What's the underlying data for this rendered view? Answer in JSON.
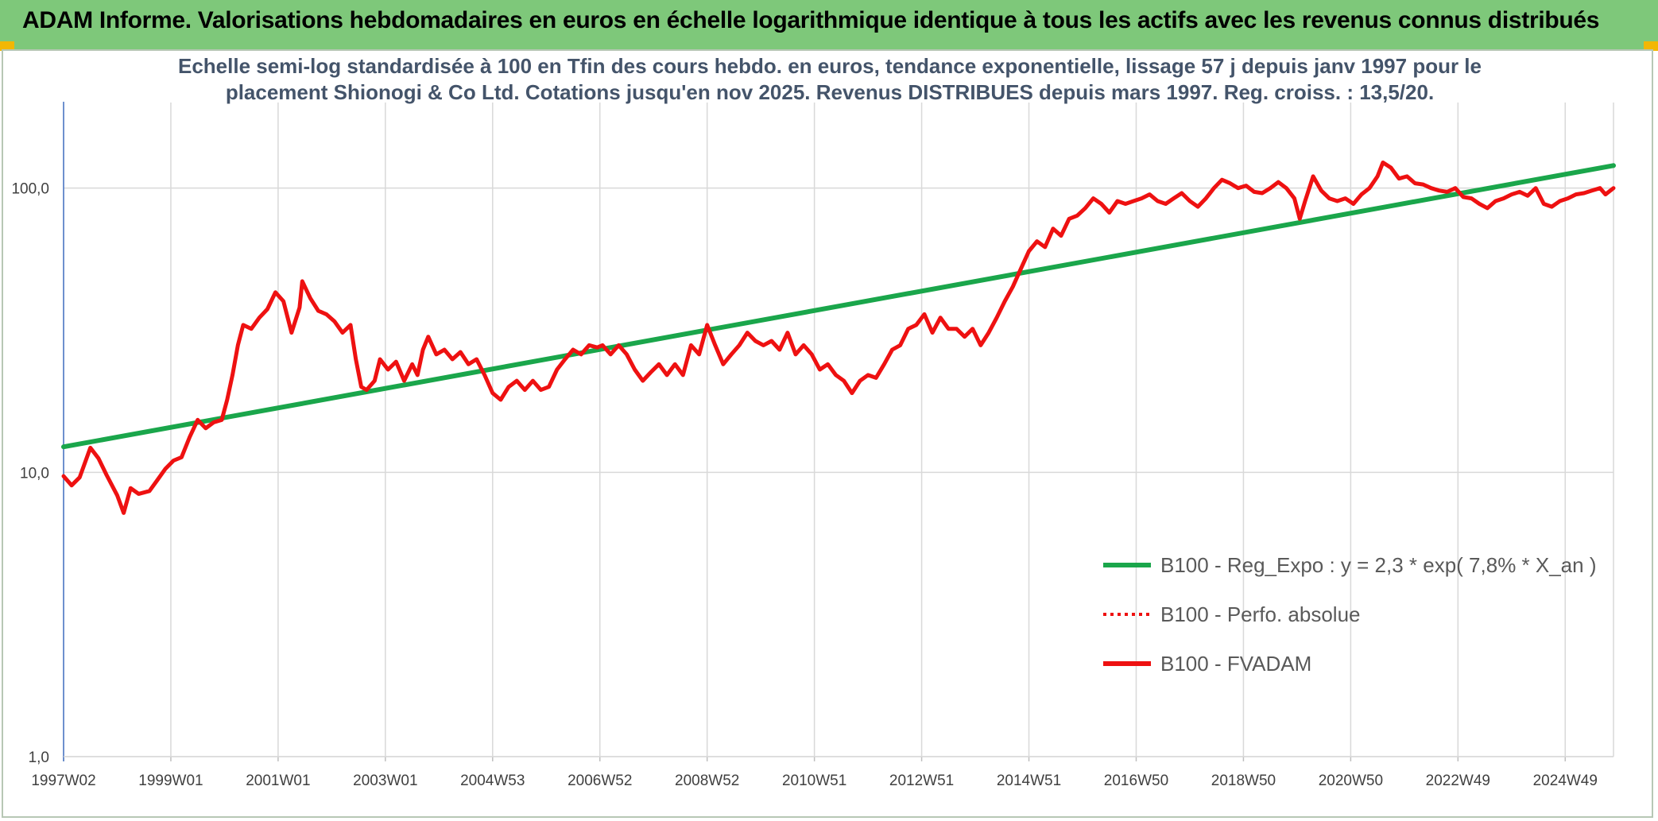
{
  "header": {
    "title": "ADAM Informe. Valorisations hebdomadaires en euros en échelle logarithmique identique à tous les actifs avec les revenus connus distribués"
  },
  "colors": {
    "banner": "#7ec87a",
    "regression": "#1aa64b",
    "fvadam": "#ee1111",
    "grid": "#d9d9d9"
  },
  "chart_data": {
    "type": "line",
    "title": "",
    "subtitle_lines": [
      "Echelle semi-log standardisée à 100 en Tfin des cours hebdo. en euros, tendance exponentielle, lissage 57 j depuis janv 1997 pour le",
      "placement Shionogi & Co Ltd. Cotations jusqu'en nov 2025. Revenus DISTRIBUES depuis mars 1997. Reg. croiss. : 13,5/20."
    ],
    "y_scale": "log",
    "ylim": [
      1,
      200
    ],
    "xlim": [
      1997.0,
      2025.9
    ],
    "grid": true,
    "y_ticks": [
      {
        "value": 1,
        "label": "1,0"
      },
      {
        "value": 10,
        "label": "10,0"
      },
      {
        "value": 100,
        "label": "100,0"
      }
    ],
    "x_ticks": [
      {
        "value": 1997.0,
        "label": "1997W02"
      },
      {
        "value": 1999.0,
        "label": "1999W01"
      },
      {
        "value": 2001.0,
        "label": "2001W01"
      },
      {
        "value": 2003.0,
        "label": "2003W01"
      },
      {
        "value": 2005.0,
        "label": "2004W53"
      },
      {
        "value": 2007.0,
        "label": "2006W52"
      },
      {
        "value": 2009.0,
        "label": "2008W52"
      },
      {
        "value": 2011.0,
        "label": "2010W51"
      },
      {
        "value": 2013.0,
        "label": "2012W51"
      },
      {
        "value": 2015.0,
        "label": "2014W51"
      },
      {
        "value": 2017.0,
        "label": "2016W50"
      },
      {
        "value": 2019.0,
        "label": "2018W50"
      },
      {
        "value": 2021.0,
        "label": "2020W50"
      },
      {
        "value": 2023.0,
        "label": "2022W49"
      },
      {
        "value": 2025.0,
        "label": "2024W49"
      }
    ],
    "legend_position": "lower-right",
    "series": [
      {
        "name": "B100 - Reg_Expo : y = 2,3 * exp( 7,8% *  X_an )",
        "color": "#1aa64b",
        "style": "solid",
        "points": [
          [
            1997.0,
            12.3
          ],
          [
            2025.9,
            120.0
          ]
        ]
      },
      {
        "name": "B100 - Perfo. absolue",
        "color": "#ee1111",
        "style": "dotted",
        "points": []
      },
      {
        "name": "B100 - FVADAM",
        "color": "#ee1111",
        "style": "solid",
        "points": [
          [
            1997.0,
            9.7
          ],
          [
            1997.15,
            9.0
          ],
          [
            1997.3,
            9.6
          ],
          [
            1997.5,
            12.2
          ],
          [
            1997.65,
            11.2
          ],
          [
            1997.8,
            9.8
          ],
          [
            1998.0,
            8.3
          ],
          [
            1998.12,
            7.2
          ],
          [
            1998.25,
            8.8
          ],
          [
            1998.4,
            8.4
          ],
          [
            1998.6,
            8.6
          ],
          [
            1998.75,
            9.4
          ],
          [
            1998.9,
            10.3
          ],
          [
            1999.05,
            11.0
          ],
          [
            1999.2,
            11.3
          ],
          [
            1999.35,
            13.3
          ],
          [
            1999.5,
            15.3
          ],
          [
            1999.65,
            14.3
          ],
          [
            1999.8,
            15.0
          ],
          [
            1999.95,
            15.3
          ],
          [
            2000.05,
            18.0
          ],
          [
            2000.15,
            22.0
          ],
          [
            2000.25,
            28.0
          ],
          [
            2000.35,
            33.0
          ],
          [
            2000.5,
            32.0
          ],
          [
            2000.65,
            35.0
          ],
          [
            2000.8,
            37.5
          ],
          [
            2000.95,
            43.0
          ],
          [
            2001.1,
            40.0
          ],
          [
            2001.25,
            31.0
          ],
          [
            2001.4,
            38.0
          ],
          [
            2001.45,
            47.0
          ],
          [
            2001.6,
            41.0
          ],
          [
            2001.75,
            37.0
          ],
          [
            2001.9,
            36.0
          ],
          [
            2002.05,
            34.0
          ],
          [
            2002.2,
            31.0
          ],
          [
            2002.35,
            33.0
          ],
          [
            2002.45,
            25.0
          ],
          [
            2002.55,
            20.0
          ],
          [
            2002.65,
            19.5
          ],
          [
            2002.8,
            21.0
          ],
          [
            2002.9,
            25.0
          ],
          [
            2003.05,
            23.0
          ],
          [
            2003.2,
            24.5
          ],
          [
            2003.35,
            21.0
          ],
          [
            2003.5,
            24.0
          ],
          [
            2003.6,
            22.0
          ],
          [
            2003.7,
            27.0
          ],
          [
            2003.8,
            30.0
          ],
          [
            2003.95,
            26.0
          ],
          [
            2004.1,
            27.0
          ],
          [
            2004.25,
            25.0
          ],
          [
            2004.4,
            26.5
          ],
          [
            2004.55,
            24.0
          ],
          [
            2004.7,
            25.0
          ],
          [
            2004.85,
            22.0
          ],
          [
            2005.0,
            19.0
          ],
          [
            2005.15,
            18.0
          ],
          [
            2005.3,
            20.0
          ],
          [
            2005.45,
            21.0
          ],
          [
            2005.6,
            19.5
          ],
          [
            2005.75,
            21.0
          ],
          [
            2005.9,
            19.5
          ],
          [
            2006.05,
            20.0
          ],
          [
            2006.2,
            23.0
          ],
          [
            2006.35,
            25.0
          ],
          [
            2006.5,
            27.0
          ],
          [
            2006.65,
            26.0
          ],
          [
            2006.8,
            28.0
          ],
          [
            2006.95,
            27.5
          ],
          [
            2007.05,
            28.0
          ],
          [
            2007.2,
            26.0
          ],
          [
            2007.35,
            28.0
          ],
          [
            2007.5,
            26.0
          ],
          [
            2007.65,
            23.0
          ],
          [
            2007.8,
            21.0
          ],
          [
            2007.95,
            22.5
          ],
          [
            2008.1,
            24.0
          ],
          [
            2008.25,
            22.0
          ],
          [
            2008.4,
            24.0
          ],
          [
            2008.55,
            22.0
          ],
          [
            2008.7,
            28.0
          ],
          [
            2008.85,
            26.0
          ],
          [
            2009.0,
            33.0
          ],
          [
            2009.15,
            28.0
          ],
          [
            2009.3,
            24.0
          ],
          [
            2009.45,
            26.0
          ],
          [
            2009.6,
            28.0
          ],
          [
            2009.75,
            31.0
          ],
          [
            2009.9,
            29.0
          ],
          [
            2010.05,
            28.0
          ],
          [
            2010.2,
            29.0
          ],
          [
            2010.35,
            27.0
          ],
          [
            2010.5,
            31.0
          ],
          [
            2010.65,
            26.0
          ],
          [
            2010.8,
            28.0
          ],
          [
            2010.95,
            26.0
          ],
          [
            2011.1,
            23.0
          ],
          [
            2011.25,
            24.0
          ],
          [
            2011.4,
            22.0
          ],
          [
            2011.55,
            21.0
          ],
          [
            2011.7,
            19.0
          ],
          [
            2011.85,
            21.0
          ],
          [
            2012.0,
            22.0
          ],
          [
            2012.15,
            21.5
          ],
          [
            2012.3,
            24.0
          ],
          [
            2012.45,
            27.0
          ],
          [
            2012.6,
            28.0
          ],
          [
            2012.75,
            32.0
          ],
          [
            2012.9,
            33.0
          ],
          [
            2013.05,
            36.0
          ],
          [
            2013.2,
            31.0
          ],
          [
            2013.35,
            35.0
          ],
          [
            2013.5,
            32.0
          ],
          [
            2013.65,
            32.0
          ],
          [
            2013.8,
            30.0
          ],
          [
            2013.95,
            32.0
          ],
          [
            2014.1,
            28.0
          ],
          [
            2014.25,
            31.0
          ],
          [
            2014.4,
            35.0
          ],
          [
            2014.55,
            40.0
          ],
          [
            2014.7,
            45.0
          ],
          [
            2014.85,
            52.0
          ],
          [
            2015.0,
            60.0
          ],
          [
            2015.15,
            65.0
          ],
          [
            2015.3,
            62.0
          ],
          [
            2015.45,
            72.0
          ],
          [
            2015.6,
            68.0
          ],
          [
            2015.75,
            78.0
          ],
          [
            2015.9,
            80.0
          ],
          [
            2016.05,
            85.0
          ],
          [
            2016.2,
            92.0
          ],
          [
            2016.35,
            88.0
          ],
          [
            2016.5,
            82.0
          ],
          [
            2016.65,
            90.0
          ],
          [
            2016.8,
            88.0
          ],
          [
            2016.95,
            90.0
          ],
          [
            2017.1,
            92.0
          ],
          [
            2017.25,
            95.0
          ],
          [
            2017.4,
            90.0
          ],
          [
            2017.55,
            88.0
          ],
          [
            2017.7,
            92.0
          ],
          [
            2017.85,
            96.0
          ],
          [
            2018.0,
            90.0
          ],
          [
            2018.15,
            86.0
          ],
          [
            2018.3,
            92.0
          ],
          [
            2018.45,
            100.0
          ],
          [
            2018.6,
            107.0
          ],
          [
            2018.75,
            104.0
          ],
          [
            2018.9,
            100.0
          ],
          [
            2019.05,
            102.0
          ],
          [
            2019.2,
            97.0
          ],
          [
            2019.35,
            96.0
          ],
          [
            2019.5,
            100.0
          ],
          [
            2019.65,
            105.0
          ],
          [
            2019.8,
            100.0
          ],
          [
            2019.95,
            92.0
          ],
          [
            2020.05,
            78.0
          ],
          [
            2020.15,
            90.0
          ],
          [
            2020.3,
            110.0
          ],
          [
            2020.45,
            98.0
          ],
          [
            2020.6,
            92.0
          ],
          [
            2020.75,
            90.0
          ],
          [
            2020.9,
            92.0
          ],
          [
            2021.05,
            88.0
          ],
          [
            2021.2,
            95.0
          ],
          [
            2021.35,
            100.0
          ],
          [
            2021.5,
            110.0
          ],
          [
            2021.6,
            123.0
          ],
          [
            2021.75,
            118.0
          ],
          [
            2021.9,
            108.0
          ],
          [
            2022.05,
            110.0
          ],
          [
            2022.2,
            104.0
          ],
          [
            2022.35,
            103.0
          ],
          [
            2022.5,
            100.0
          ],
          [
            2022.65,
            98.0
          ],
          [
            2022.8,
            97.0
          ],
          [
            2022.95,
            100.0
          ],
          [
            2023.1,
            93.0
          ],
          [
            2023.25,
            92.0
          ],
          [
            2023.4,
            88.0
          ],
          [
            2023.55,
            85.0
          ],
          [
            2023.7,
            90.0
          ],
          [
            2023.85,
            92.0
          ],
          [
            2024.0,
            95.0
          ],
          [
            2024.15,
            97.0
          ],
          [
            2024.3,
            94.0
          ],
          [
            2024.45,
            100.0
          ],
          [
            2024.6,
            88.0
          ],
          [
            2024.75,
            86.0
          ],
          [
            2024.9,
            90.0
          ],
          [
            2025.05,
            92.0
          ],
          [
            2025.2,
            95.0
          ],
          [
            2025.35,
            96.0
          ],
          [
            2025.5,
            98.0
          ],
          [
            2025.65,
            100.0
          ],
          [
            2025.75,
            95.0
          ],
          [
            2025.9,
            100.0
          ]
        ]
      }
    ]
  }
}
